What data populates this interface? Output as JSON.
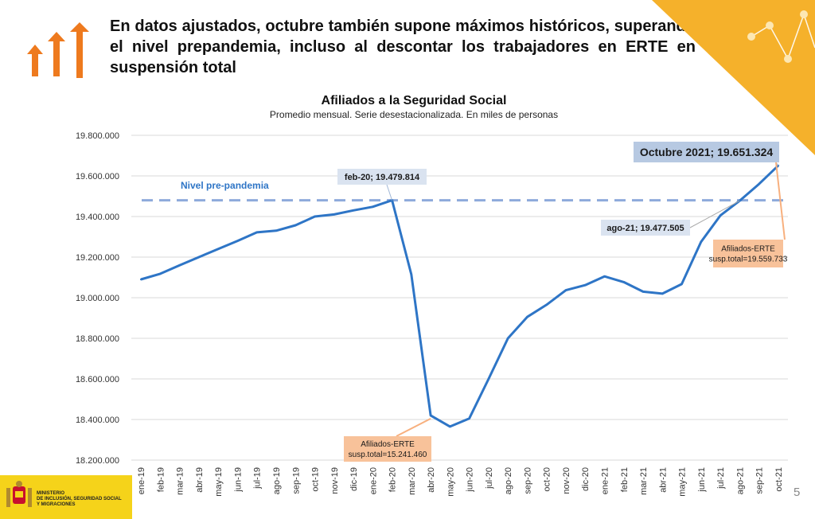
{
  "slide": {
    "headline": "En datos ajustados, octubre también supone máximos históricos, superando el nivel prepandemia, incluso al descontar los trabajadores en ERTE en suspensión total",
    "page_number": "5",
    "ministry": [
      "MINISTERIO",
      "DE INCLUSIÓN, SEGURIDAD SOCIAL",
      "Y MIGRACIONES"
    ],
    "accent_color": "#f5b12b",
    "arrow_color": "#ee7a1e"
  },
  "chart_data": {
    "type": "line",
    "title": "Afiliados a la Seguridad Social",
    "subtitle": "Promedio mensual. Serie desestacionalizada. En miles de personas",
    "categories": [
      "ene-19",
      "feb-19",
      "mar-19",
      "abr-19",
      "may-19",
      "jun-19",
      "jul-19",
      "ago-19",
      "sep-19",
      "oct-19",
      "nov-19",
      "dic-19",
      "ene-20",
      "feb-20",
      "mar-20",
      "abr-20",
      "may-20",
      "jun-20",
      "jul-20",
      "ago-20",
      "sep-20",
      "oct-20",
      "nov-20",
      "dic-20",
      "ene-21",
      "feb-21",
      "mar-21",
      "abr-21",
      "may-21",
      "jun-21",
      "jul-21",
      "ago-21",
      "sep-21",
      "oct-21"
    ],
    "series": [
      {
        "values": [
          19090000,
          19118000,
          19160000,
          19200000,
          19240000,
          19280000,
          19322000,
          19330000,
          19357000,
          19400000,
          19410000,
          19430000,
          19448000,
          19479814,
          19115000,
          18420000,
          18365000,
          18405000,
          18600000,
          18800000,
          18905000,
          18965000,
          19037000,
          19062000,
          19105000,
          19077000,
          19030000,
          19020000,
          19067000,
          19275000,
          19405000,
          19477505,
          19560000,
          19651324
        ],
        "color": "#2e75c6"
      }
    ],
    "ylim": [
      18200000,
      19800000
    ],
    "yticks": [
      "18.200.000",
      "18.400.000",
      "18.600.000",
      "18.800.000",
      "19.000.000",
      "19.200.000",
      "19.400.000",
      "19.600.000",
      "19.800.000"
    ],
    "ytick_values": [
      18200000,
      18400000,
      18600000,
      18800000,
      19000000,
      19200000,
      19400000,
      19600000,
      19800000
    ],
    "grid": true,
    "reference_line": {
      "label": "Nivel pre-pandemia",
      "value": 19479814,
      "color": "#8eaadb"
    },
    "annotations": {
      "feb": "feb-20; 19.479.814",
      "oct": "Octubre 2021; 19.651.324",
      "ago": "ago-21; 19.477.505",
      "erte_oct": [
        "Afiliados-ERTE",
        "susp.total=19.559.733"
      ],
      "erte_abr": [
        "Afiliados-ERTE",
        "susp.total=15.241.460"
      ]
    }
  }
}
